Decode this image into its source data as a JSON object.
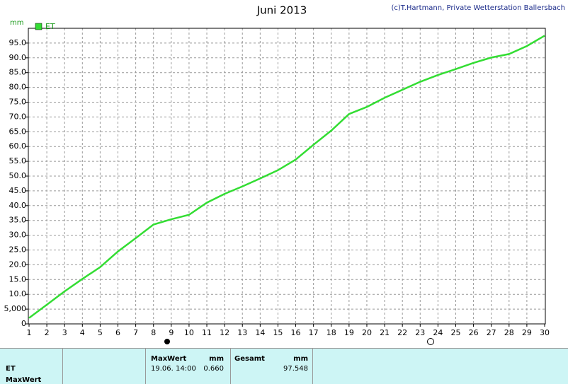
{
  "chart_data": {
    "type": "line",
    "title": "Juni 2013",
    "credit": "(c)T.Hartmann, Private Wetterstation Ballersbach",
    "y_label": "mm",
    "x": [
      1,
      2,
      3,
      4,
      5,
      6,
      7,
      8,
      9,
      10,
      11,
      12,
      13,
      14,
      15,
      16,
      17,
      18,
      19,
      20,
      21,
      22,
      23,
      24,
      25,
      26,
      27,
      28,
      29,
      30
    ],
    "series": [
      {
        "name": "ET",
        "color": "#33dd33",
        "values": [
          2,
          6.5,
          11,
          15.2,
          19.2,
          24.5,
          29,
          33.6,
          35.4,
          36.9,
          41,
          44,
          46.5,
          49.2,
          52,
          55.6,
          60.6,
          65.4,
          71,
          73.4,
          76.5,
          79.2,
          81.9,
          84.2,
          86.2,
          88.3,
          90.1,
          91.3,
          94,
          97.5
        ]
      }
    ],
    "xlim": [
      1,
      30
    ],
    "ylim": [
      0,
      100
    ],
    "xticks": [
      1,
      2,
      3,
      4,
      5,
      6,
      7,
      8,
      9,
      10,
      11,
      12,
      13,
      14,
      15,
      16,
      17,
      18,
      19,
      20,
      21,
      22,
      23,
      24,
      25,
      26,
      27,
      28,
      29,
      30
    ],
    "yticks": [
      0,
      {
        "value": 5,
        "label": "5,000"
      },
      {
        "value": 10,
        "label": "10.0"
      },
      {
        "value": 15,
        "label": "15.0"
      },
      {
        "value": 20,
        "label": "20.0"
      },
      {
        "value": 25,
        "label": "25.0"
      },
      {
        "value": 30,
        "label": "30.0"
      },
      {
        "value": 35,
        "label": "35.0"
      },
      {
        "value": 40,
        "label": "40.0"
      },
      {
        "value": 45,
        "label": "45.0"
      },
      {
        "value": 50,
        "label": "50.0"
      },
      {
        "value": 55,
        "label": "55.0"
      },
      {
        "value": 60,
        "label": "60.0"
      },
      {
        "value": 65,
        "label": "65.0"
      },
      {
        "value": 70,
        "label": "70.0"
      },
      {
        "value": 75,
        "label": "75.0"
      },
      {
        "value": 80,
        "label": "80.0"
      },
      {
        "value": 85,
        "label": "85.0"
      },
      {
        "value": 90,
        "label": "90.0"
      },
      {
        "value": 95,
        "label": "95.0"
      }
    ],
    "grid": true
  },
  "table": {
    "row_labels": [
      "ET",
      "MaxWert"
    ],
    "maxwert": {
      "header": "MaxWert",
      "unit": "mm",
      "time": "19.06. 14:00",
      "value": "0.660"
    },
    "gesamt": {
      "header": "Gesamt",
      "unit": "mm",
      "value": "97.548"
    }
  }
}
